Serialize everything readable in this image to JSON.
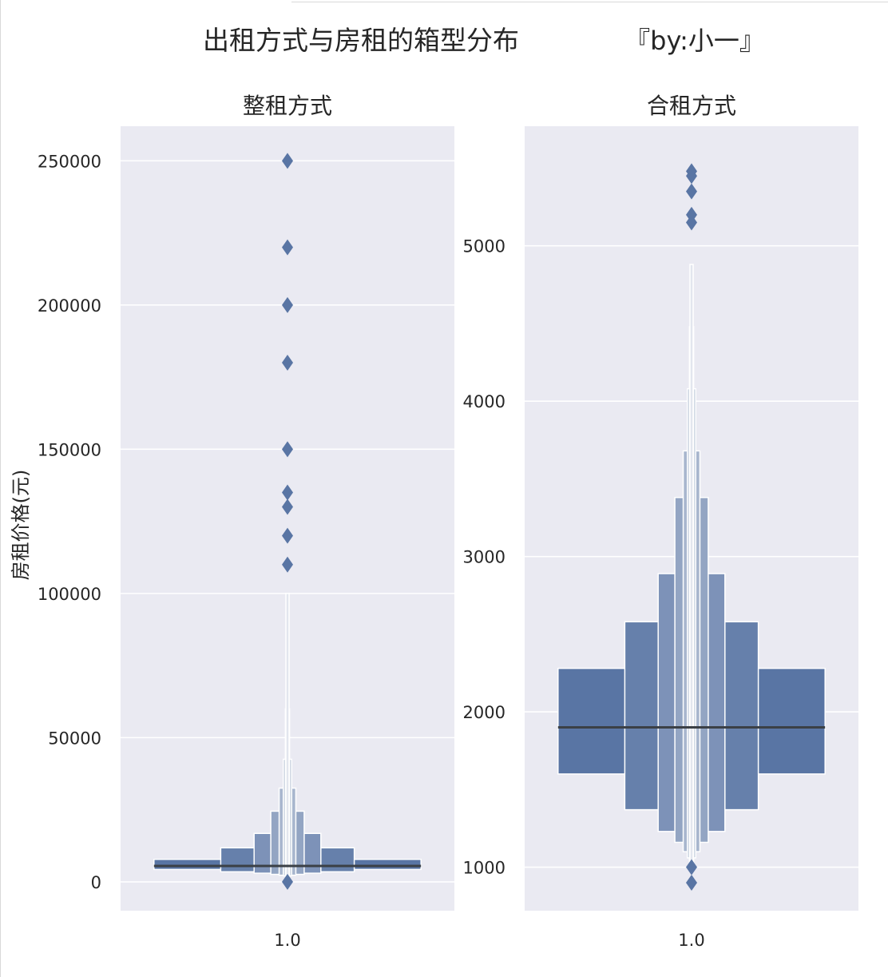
{
  "title": "出租方式与房租的箱型分布",
  "credit": "『by:小一』",
  "ylabel": "房租价格(元)",
  "colors": {
    "box": "#5975a4",
    "panel": "#eaeaf2",
    "grid": "#ffffff",
    "median": "#3b4046",
    "text": "#262626"
  },
  "chart_data": [
    {
      "type": "boxenplot",
      "title": "整租方式",
      "category": "1.0",
      "ylim": [
        -10000,
        262000
      ],
      "yticks": [
        0,
        50000,
        100000,
        150000,
        200000,
        250000
      ],
      "tick_labels": [
        "0",
        "50000",
        "100000",
        "150000",
        "200000",
        "250000"
      ],
      "median": 5500,
      "levels": [
        {
          "low": 4300,
          "high": 7800
        },
        {
          "low": 3500,
          "high": 11800
        },
        {
          "low": 3000,
          "high": 16800
        },
        {
          "low": 2600,
          "high": 24500
        },
        {
          "low": 2300,
          "high": 32500
        },
        {
          "low": 2100,
          "high": 42500
        },
        {
          "low": 2000,
          "high": 60000
        },
        {
          "low": 1900,
          "high": 100000
        }
      ],
      "outliers": [
        250000,
        220000,
        200000,
        180000,
        150000,
        135000,
        130000,
        120000,
        110000,
        0
      ]
    },
    {
      "type": "boxenplot",
      "title": "合租方式",
      "category": "1.0",
      "ylim": [
        720,
        5770
      ],
      "yticks": [
        1000,
        2000,
        3000,
        4000,
        5000
      ],
      "tick_labels": [
        "1000",
        "2000",
        "3000",
        "4000",
        "5000"
      ],
      "median": 1900,
      "levels": [
        {
          "low": 1600,
          "high": 2280
        },
        {
          "low": 1370,
          "high": 2580
        },
        {
          "low": 1230,
          "high": 2890
        },
        {
          "low": 1160,
          "high": 3380
        },
        {
          "low": 1100,
          "high": 3680
        },
        {
          "low": 1060,
          "high": 4080
        },
        {
          "low": 1030,
          "high": 4480
        },
        {
          "low": 1010,
          "high": 4880
        }
      ],
      "outliers": [
        5480,
        5450,
        5350,
        5200,
        5150,
        1000,
        900
      ]
    }
  ]
}
